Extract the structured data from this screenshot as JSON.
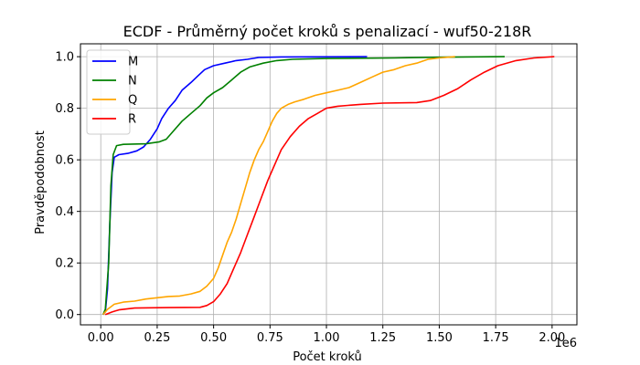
{
  "chart_data": {
    "type": "line",
    "title": "ECDF - Průměrný počet kroků s penalizací - wuf50-218R",
    "xlabel": "Počet kroků",
    "ylabel": "Pravděpodobnost",
    "x_offset_label": "1e6",
    "xlim": [
      -0.09,
      2.11
    ],
    "ylim": [
      -0.04,
      1.05
    ],
    "x_ticks": [
      0,
      0.25,
      0.5,
      0.75,
      1.0,
      1.25,
      1.5,
      1.75,
      2.0
    ],
    "x_tick_labels": [
      "0.00",
      "0.25",
      "0.50",
      "0.75",
      "1.00",
      "1.25",
      "1.50",
      "1.75",
      "2.00"
    ],
    "y_ticks": [
      0,
      0.2,
      0.4,
      0.6,
      0.8,
      1.0
    ],
    "y_tick_labels": [
      "0.0",
      "0.2",
      "0.4",
      "0.6",
      "0.8",
      "1.0"
    ],
    "grid": true,
    "legend_position": "top-left",
    "series": [
      {
        "name": "M",
        "color": "#0000ff",
        "points": [
          [
            0.01,
            0.0
          ],
          [
            0.02,
            0.01
          ],
          [
            0.03,
            0.1
          ],
          [
            0.04,
            0.35
          ],
          [
            0.05,
            0.55
          ],
          [
            0.06,
            0.61
          ],
          [
            0.08,
            0.62
          ],
          [
            0.12,
            0.625
          ],
          [
            0.16,
            0.635
          ],
          [
            0.19,
            0.65
          ],
          [
            0.22,
            0.68
          ],
          [
            0.25,
            0.72
          ],
          [
            0.27,
            0.76
          ],
          [
            0.3,
            0.8
          ],
          [
            0.33,
            0.83
          ],
          [
            0.36,
            0.87
          ],
          [
            0.4,
            0.9
          ],
          [
            0.43,
            0.925
          ],
          [
            0.46,
            0.95
          ],
          [
            0.5,
            0.965
          ],
          [
            0.55,
            0.975
          ],
          [
            0.6,
            0.985
          ],
          [
            0.65,
            0.99
          ],
          [
            0.7,
            0.997
          ],
          [
            0.8,
            0.999
          ],
          [
            1.18,
            1.0
          ]
        ]
      },
      {
        "name": "N",
        "color": "#008000",
        "points": [
          [
            0.01,
            0.0
          ],
          [
            0.02,
            0.02
          ],
          [
            0.035,
            0.2
          ],
          [
            0.045,
            0.5
          ],
          [
            0.055,
            0.62
          ],
          [
            0.07,
            0.655
          ],
          [
            0.1,
            0.66
          ],
          [
            0.2,
            0.662
          ],
          [
            0.26,
            0.67
          ],
          [
            0.29,
            0.68
          ],
          [
            0.32,
            0.71
          ],
          [
            0.36,
            0.75
          ],
          [
            0.4,
            0.78
          ],
          [
            0.44,
            0.81
          ],
          [
            0.47,
            0.84
          ],
          [
            0.5,
            0.86
          ],
          [
            0.54,
            0.88
          ],
          [
            0.58,
            0.91
          ],
          [
            0.62,
            0.94
          ],
          [
            0.66,
            0.96
          ],
          [
            0.72,
            0.975
          ],
          [
            0.78,
            0.985
          ],
          [
            0.85,
            0.99
          ],
          [
            1.0,
            0.993
          ],
          [
            1.3,
            0.995
          ],
          [
            1.5,
            0.998
          ],
          [
            1.79,
            1.0
          ]
        ]
      },
      {
        "name": "Q",
        "color": "#ffa500",
        "points": [
          [
            0.01,
            0.0
          ],
          [
            0.03,
            0.02
          ],
          [
            0.06,
            0.04
          ],
          [
            0.1,
            0.048
          ],
          [
            0.15,
            0.052
          ],
          [
            0.2,
            0.06
          ],
          [
            0.25,
            0.065
          ],
          [
            0.3,
            0.07
          ],
          [
            0.35,
            0.072
          ],
          [
            0.4,
            0.08
          ],
          [
            0.44,
            0.09
          ],
          [
            0.47,
            0.11
          ],
          [
            0.5,
            0.14
          ],
          [
            0.52,
            0.18
          ],
          [
            0.54,
            0.23
          ],
          [
            0.56,
            0.28
          ],
          [
            0.58,
            0.32
          ],
          [
            0.6,
            0.37
          ],
          [
            0.62,
            0.43
          ],
          [
            0.64,
            0.49
          ],
          [
            0.66,
            0.55
          ],
          [
            0.68,
            0.6
          ],
          [
            0.7,
            0.64
          ],
          [
            0.72,
            0.67
          ],
          [
            0.74,
            0.71
          ],
          [
            0.76,
            0.75
          ],
          [
            0.78,
            0.78
          ],
          [
            0.8,
            0.8
          ],
          [
            0.83,
            0.815
          ],
          [
            0.86,
            0.825
          ],
          [
            0.9,
            0.835
          ],
          [
            0.95,
            0.85
          ],
          [
            1.0,
            0.86
          ],
          [
            1.05,
            0.87
          ],
          [
            1.1,
            0.88
          ],
          [
            1.15,
            0.9
          ],
          [
            1.2,
            0.92
          ],
          [
            1.25,
            0.94
          ],
          [
            1.3,
            0.95
          ],
          [
            1.35,
            0.965
          ],
          [
            1.4,
            0.975
          ],
          [
            1.45,
            0.99
          ],
          [
            1.5,
            0.995
          ],
          [
            1.57,
            1.0
          ]
        ]
      },
      {
        "name": "R",
        "color": "#ff0000",
        "points": [
          [
            0.02,
            0.0
          ],
          [
            0.05,
            0.01
          ],
          [
            0.08,
            0.018
          ],
          [
            0.15,
            0.025
          ],
          [
            0.3,
            0.027
          ],
          [
            0.44,
            0.028
          ],
          [
            0.47,
            0.035
          ],
          [
            0.5,
            0.05
          ],
          [
            0.53,
            0.08
          ],
          [
            0.56,
            0.12
          ],
          [
            0.59,
            0.18
          ],
          [
            0.62,
            0.24
          ],
          [
            0.65,
            0.31
          ],
          [
            0.68,
            0.38
          ],
          [
            0.71,
            0.45
          ],
          [
            0.74,
            0.52
          ],
          [
            0.77,
            0.58
          ],
          [
            0.8,
            0.64
          ],
          [
            0.84,
            0.69
          ],
          [
            0.88,
            0.73
          ],
          [
            0.92,
            0.76
          ],
          [
            0.96,
            0.78
          ],
          [
            1.0,
            0.8
          ],
          [
            1.05,
            0.808
          ],
          [
            1.15,
            0.815
          ],
          [
            1.25,
            0.82
          ],
          [
            1.4,
            0.822
          ],
          [
            1.46,
            0.83
          ],
          [
            1.52,
            0.85
          ],
          [
            1.58,
            0.875
          ],
          [
            1.64,
            0.91
          ],
          [
            1.7,
            0.94
          ],
          [
            1.76,
            0.965
          ],
          [
            1.84,
            0.985
          ],
          [
            1.92,
            0.995
          ],
          [
            2.01,
            1.0
          ]
        ]
      }
    ]
  }
}
